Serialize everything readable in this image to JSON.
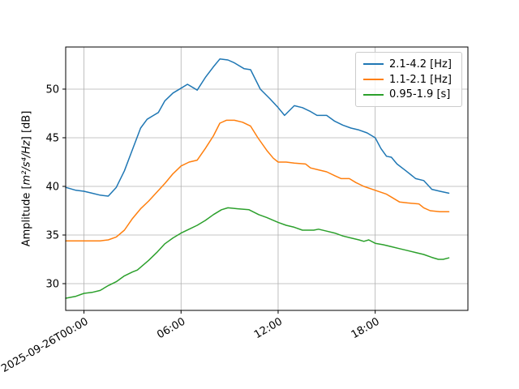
{
  "chart_data": {
    "type": "line",
    "title": "",
    "xlabel": "",
    "ylabel_prefix": "Amplitude [",
    "ylabel_math": "m²/s⁴/Hz",
    "ylabel_suffix": "] [dB]",
    "xlim_hours": [
      -1.13,
      23.73
    ],
    "ylim": [
      27.25,
      54.33
    ],
    "grid": true,
    "grid_color": "#b0b0b0",
    "background_color": "#ffffff",
    "legend_position": "upper right",
    "xticks": [
      {
        "hour": 0,
        "label": "2025-09-26T00:00"
      },
      {
        "hour": 6,
        "label": "06:00"
      },
      {
        "hour": 12,
        "label": "12:00"
      },
      {
        "hour": 18,
        "label": "18:00"
      }
    ],
    "yticks": [
      {
        "value": 30,
        "label": "30"
      },
      {
        "value": 35,
        "label": "35"
      },
      {
        "value": 40,
        "label": "40"
      },
      {
        "value": 45,
        "label": "45"
      },
      {
        "value": 50,
        "label": "50"
      }
    ],
    "series": [
      {
        "name": "2.1-4.2 [Hz]",
        "color": "#1f77b4",
        "points": [
          [
            -1.13,
            39.9
          ],
          [
            -0.5,
            39.6
          ],
          [
            0,
            39.5
          ],
          [
            0.5,
            39.3
          ],
          [
            1,
            39.1
          ],
          [
            1.5,
            39.0
          ],
          [
            2,
            39.9
          ],
          [
            2.5,
            41.6
          ],
          [
            3,
            43.8
          ],
          [
            3.5,
            46.0
          ],
          [
            3.9,
            46.9
          ],
          [
            4.3,
            47.3
          ],
          [
            4.6,
            47.6
          ],
          [
            5,
            48.8
          ],
          [
            5.5,
            49.6
          ],
          [
            6,
            50.1
          ],
          [
            6.4,
            50.5
          ],
          [
            7,
            49.9
          ],
          [
            7.5,
            51.2
          ],
          [
            8,
            52.3
          ],
          [
            8.4,
            53.1
          ],
          [
            8.9,
            53.0
          ],
          [
            9.3,
            52.7
          ],
          [
            9.9,
            52.1
          ],
          [
            10.3,
            52.0
          ],
          [
            10.9,
            50.0
          ],
          [
            11.5,
            49.0
          ],
          [
            12,
            48.1
          ],
          [
            12.4,
            47.3
          ],
          [
            13,
            48.3
          ],
          [
            13.5,
            48.1
          ],
          [
            14,
            47.7
          ],
          [
            14.4,
            47.3
          ],
          [
            15,
            47.3
          ],
          [
            15.5,
            46.7
          ],
          [
            16,
            46.3
          ],
          [
            16.5,
            46.0
          ],
          [
            17,
            45.8
          ],
          [
            17.5,
            45.5
          ],
          [
            18,
            45.0
          ],
          [
            18.35,
            43.9
          ],
          [
            18.7,
            43.1
          ],
          [
            19,
            43.0
          ],
          [
            19.35,
            42.3
          ],
          [
            19.9,
            41.6
          ],
          [
            20.5,
            40.8
          ],
          [
            21,
            40.6
          ],
          [
            21.5,
            39.7
          ],
          [
            22,
            39.5
          ],
          [
            22.55,
            39.3
          ]
        ]
      },
      {
        "name": "1.1-2.1 [Hz]",
        "color": "#ff7f0e",
        "points": [
          [
            -1.13,
            34.4
          ],
          [
            -0.5,
            34.4
          ],
          [
            0,
            34.4
          ],
          [
            0.5,
            34.4
          ],
          [
            1,
            34.4
          ],
          [
            1.5,
            34.5
          ],
          [
            2,
            34.8
          ],
          [
            2.5,
            35.5
          ],
          [
            3,
            36.7
          ],
          [
            3.5,
            37.7
          ],
          [
            4,
            38.5
          ],
          [
            4.5,
            39.4
          ],
          [
            5,
            40.3
          ],
          [
            5.5,
            41.3
          ],
          [
            6,
            42.1
          ],
          [
            6.5,
            42.5
          ],
          [
            7,
            42.7
          ],
          [
            7.5,
            43.9
          ],
          [
            8,
            45.2
          ],
          [
            8.4,
            46.5
          ],
          [
            8.8,
            46.8
          ],
          [
            9.3,
            46.8
          ],
          [
            9.8,
            46.6
          ],
          [
            10.3,
            46.2
          ],
          [
            10.75,
            45.0
          ],
          [
            11.3,
            43.7
          ],
          [
            11.7,
            42.9
          ],
          [
            12,
            42.5
          ],
          [
            12.5,
            42.5
          ],
          [
            13,
            42.4
          ],
          [
            13.7,
            42.3
          ],
          [
            14,
            41.9
          ],
          [
            14.5,
            41.7
          ],
          [
            15,
            41.5
          ],
          [
            15.5,
            41.1
          ],
          [
            15.9,
            40.8
          ],
          [
            16.4,
            40.8
          ],
          [
            16.8,
            40.4
          ],
          [
            17.3,
            40.0
          ],
          [
            18,
            39.6
          ],
          [
            18.7,
            39.2
          ],
          [
            19,
            38.9
          ],
          [
            19.5,
            38.4
          ],
          [
            20,
            38.3
          ],
          [
            20.7,
            38.2
          ],
          [
            21,
            37.8
          ],
          [
            21.4,
            37.5
          ],
          [
            22,
            37.4
          ],
          [
            22.55,
            37.4
          ]
        ]
      },
      {
        "name": "0.95-1.9 [s]",
        "color": "#2ca02c",
        "points": [
          [
            -1.13,
            28.5
          ],
          [
            -0.5,
            28.7
          ],
          [
            0,
            29.0
          ],
          [
            0.5,
            29.1
          ],
          [
            1,
            29.3
          ],
          [
            1.5,
            29.8
          ],
          [
            2,
            30.2
          ],
          [
            2.5,
            30.8
          ],
          [
            3,
            31.2
          ],
          [
            3.3,
            31.4
          ],
          [
            4,
            32.4
          ],
          [
            4.5,
            33.2
          ],
          [
            5,
            34.1
          ],
          [
            5.5,
            34.7
          ],
          [
            6,
            35.2
          ],
          [
            6.5,
            35.6
          ],
          [
            7,
            36.0
          ],
          [
            7.5,
            36.5
          ],
          [
            8,
            37.1
          ],
          [
            8.5,
            37.6
          ],
          [
            8.9,
            37.8
          ],
          [
            9.5,
            37.7
          ],
          [
            10.2,
            37.6
          ],
          [
            10.8,
            37.1
          ],
          [
            11.3,
            36.8
          ],
          [
            12,
            36.3
          ],
          [
            12.5,
            36.0
          ],
          [
            13,
            35.8
          ],
          [
            13.5,
            35.5
          ],
          [
            14.2,
            35.5
          ],
          [
            14.5,
            35.6
          ],
          [
            15,
            35.4
          ],
          [
            15.5,
            35.2
          ],
          [
            16,
            34.9
          ],
          [
            16.5,
            34.7
          ],
          [
            17,
            34.5
          ],
          [
            17.3,
            34.35
          ],
          [
            17.6,
            34.5
          ],
          [
            18,
            34.15
          ],
          [
            18.5,
            34.0
          ],
          [
            19,
            33.8
          ],
          [
            19.5,
            33.6
          ],
          [
            20,
            33.4
          ],
          [
            20.5,
            33.2
          ],
          [
            21,
            33.0
          ],
          [
            21.5,
            32.7
          ],
          [
            21.9,
            32.5
          ],
          [
            22.2,
            32.5
          ],
          [
            22.55,
            32.65
          ]
        ]
      }
    ]
  }
}
